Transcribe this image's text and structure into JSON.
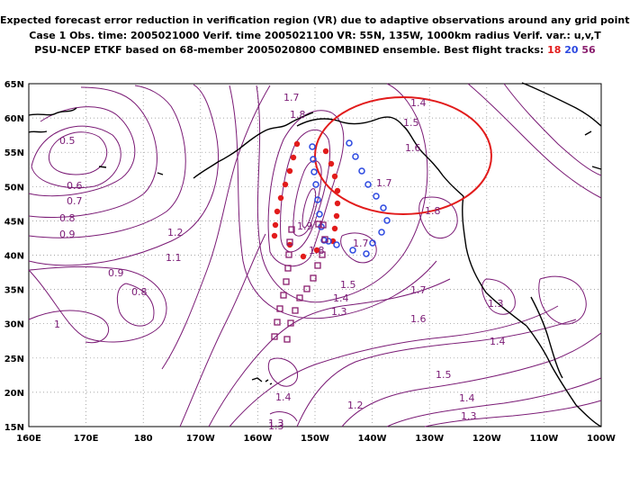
{
  "header": {
    "line1": "Expected forecast error reduction in verification region (VR) due to adaptive observations around any grid point.",
    "line2": "Case 1   Obs. time: 2005021000   Verif. time 2005021100   VR: 55N, 135W, 1000km radius   Verif. var.: u,v,T",
    "line3_prefix": "PSU-NCEP ETKF based on 68-member 2005020800 COMBINED ensemble.   Best flight tracks: ",
    "track_red": "18",
    "track_blue": "20",
    "track_purple": "56"
  },
  "axes": {
    "lon_labels": [
      "160E",
      "170E",
      "180",
      "170W",
      "160W",
      "150W",
      "140W",
      "130W",
      "120W",
      "110W",
      "100W"
    ],
    "lat_labels": [
      "15N",
      "20N",
      "25N",
      "30N",
      "35N",
      "40N",
      "45N",
      "50N",
      "55N",
      "60N",
      "65N"
    ]
  },
  "contour_labels": [
    "0.5",
    "0.6",
    "0.7",
    "0.8",
    "0.9",
    "1.2",
    "1.1",
    "0.9",
    "0.8",
    "1",
    "1.7",
    "1.8",
    "1.9",
    "1.8",
    "1.7",
    "1.5",
    "1.4",
    "1.3",
    "1.4",
    "1.3",
    "1.2",
    "1.4",
    "1.5",
    "1.6",
    "1.7",
    "1.8",
    "1.7",
    "1.6",
    "1.5",
    "1.4",
    "1.3",
    "1.4",
    "1.3",
    "1.3"
  ],
  "colors": {
    "contour": "#7a1a75",
    "red_track": "#e21b1b",
    "blue_track": "#2b48e0",
    "purple_track": "#8a1e6e",
    "circle": "#e21b1b"
  }
}
